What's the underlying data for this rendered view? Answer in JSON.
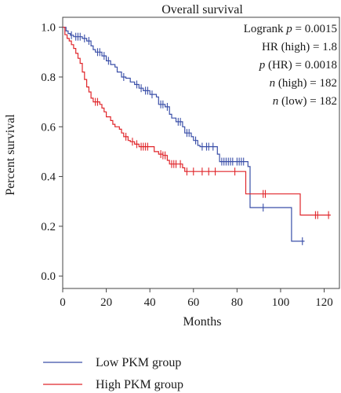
{
  "chart_data": {
    "type": "line",
    "title": "Overall survival",
    "xlabel": "Months",
    "ylabel": "Percent survival",
    "xlim": [
      0,
      127
    ],
    "ylim": [
      -0.05,
      1.04
    ],
    "x_ticks": [
      "0",
      "20",
      "40",
      "60",
      "80",
      "100",
      "120"
    ],
    "y_ticks": [
      "0.0",
      "0.2",
      "0.4",
      "0.6",
      "0.8",
      "1.0"
    ],
    "grid": false,
    "legend_position": "bottom-left",
    "stats": {
      "logrank_prefix": "Logrank ",
      "logrank_var": "p",
      "logrank_value": " = 0.0015",
      "hr_text": "HR (high) = 1.8",
      "phr_var": "p",
      "phr_value": " (HR) = 0.0018",
      "nhigh_var": "n",
      "nhigh_value": " (high) = 182",
      "nlow_var": "n",
      "nlow_value": " (low) = 182"
    },
    "series": [
      {
        "name": "Low PKM group",
        "color": "#3a4fa8",
        "steps": [
          [
            0,
            1.0
          ],
          [
            1.5,
            0.985
          ],
          [
            2.5,
            0.975
          ],
          [
            3.5,
            0.968
          ],
          [
            5,
            0.962
          ],
          [
            9,
            0.955
          ],
          [
            11,
            0.945
          ],
          [
            13,
            0.925
          ],
          [
            14,
            0.91
          ],
          [
            15,
            0.9
          ],
          [
            18,
            0.885
          ],
          [
            20,
            0.865
          ],
          [
            22,
            0.85
          ],
          [
            24,
            0.84
          ],
          [
            25,
            0.82
          ],
          [
            27,
            0.8
          ],
          [
            29,
            0.795
          ],
          [
            31,
            0.78
          ],
          [
            33,
            0.77
          ],
          [
            35,
            0.755
          ],
          [
            37,
            0.745
          ],
          [
            40,
            0.73
          ],
          [
            43,
            0.72
          ],
          [
            44,
            0.69
          ],
          [
            47,
            0.68
          ],
          [
            49,
            0.65
          ],
          [
            50,
            0.635
          ],
          [
            52,
            0.62
          ],
          [
            55,
            0.6
          ],
          [
            56,
            0.575
          ],
          [
            59,
            0.56
          ],
          [
            60,
            0.545
          ],
          [
            62,
            0.525
          ],
          [
            63,
            0.52
          ],
          [
            65,
            0.52
          ],
          [
            70,
            0.52
          ],
          [
            71,
            0.49
          ],
          [
            72,
            0.46
          ],
          [
            79,
            0.46
          ],
          [
            84,
            0.46
          ],
          [
            85,
            0.44
          ],
          [
            86,
            0.275
          ],
          [
            104,
            0.275
          ],
          [
            105,
            0.14
          ],
          [
            111,
            0.14
          ]
        ],
        "censor_x": [
          4,
          6,
          7,
          8,
          10,
          12,
          16,
          17,
          19,
          21,
          28,
          34,
          36,
          38,
          39,
          41,
          45,
          46,
          48,
          53,
          54,
          57,
          58,
          61,
          64,
          66,
          67,
          69,
          73,
          74,
          75,
          76,
          77,
          78,
          80,
          81,
          82,
          83,
          92,
          110
        ]
      },
      {
        "name": "High PKM group",
        "color": "#e0262b",
        "steps": [
          [
            0,
            1.0
          ],
          [
            1,
            0.97
          ],
          [
            2,
            0.955
          ],
          [
            3,
            0.945
          ],
          [
            4,
            0.93
          ],
          [
            5,
            0.915
          ],
          [
            6,
            0.895
          ],
          [
            7,
            0.875
          ],
          [
            8,
            0.855
          ],
          [
            9,
            0.82
          ],
          [
            10,
            0.79
          ],
          [
            11,
            0.76
          ],
          [
            12,
            0.74
          ],
          [
            13,
            0.715
          ],
          [
            14,
            0.7
          ],
          [
            17,
            0.69
          ],
          [
            18,
            0.675
          ],
          [
            19,
            0.66
          ],
          [
            20,
            0.64
          ],
          [
            22,
            0.625
          ],
          [
            23,
            0.61
          ],
          [
            24,
            0.6
          ],
          [
            26,
            0.59
          ],
          [
            27,
            0.575
          ],
          [
            28,
            0.56
          ],
          [
            30,
            0.545
          ],
          [
            31,
            0.54
          ],
          [
            33,
            0.53
          ],
          [
            35,
            0.52
          ],
          [
            40,
            0.52
          ],
          [
            42,
            0.5
          ],
          [
            44,
            0.49
          ],
          [
            46,
            0.485
          ],
          [
            48,
            0.465
          ],
          [
            49,
            0.45
          ],
          [
            53,
            0.45
          ],
          [
            55,
            0.435
          ],
          [
            56,
            0.42
          ],
          [
            83,
            0.42
          ],
          [
            84,
            0.33
          ],
          [
            108,
            0.33
          ],
          [
            109,
            0.245
          ],
          [
            123,
            0.245
          ]
        ],
        "censor_x": [
          15,
          16,
          29,
          32,
          34,
          36,
          37,
          38,
          39,
          45,
          46,
          47,
          50,
          51,
          52,
          54,
          57,
          60,
          64,
          67,
          70,
          79,
          92,
          93,
          116,
          117,
          122
        ]
      }
    ]
  }
}
